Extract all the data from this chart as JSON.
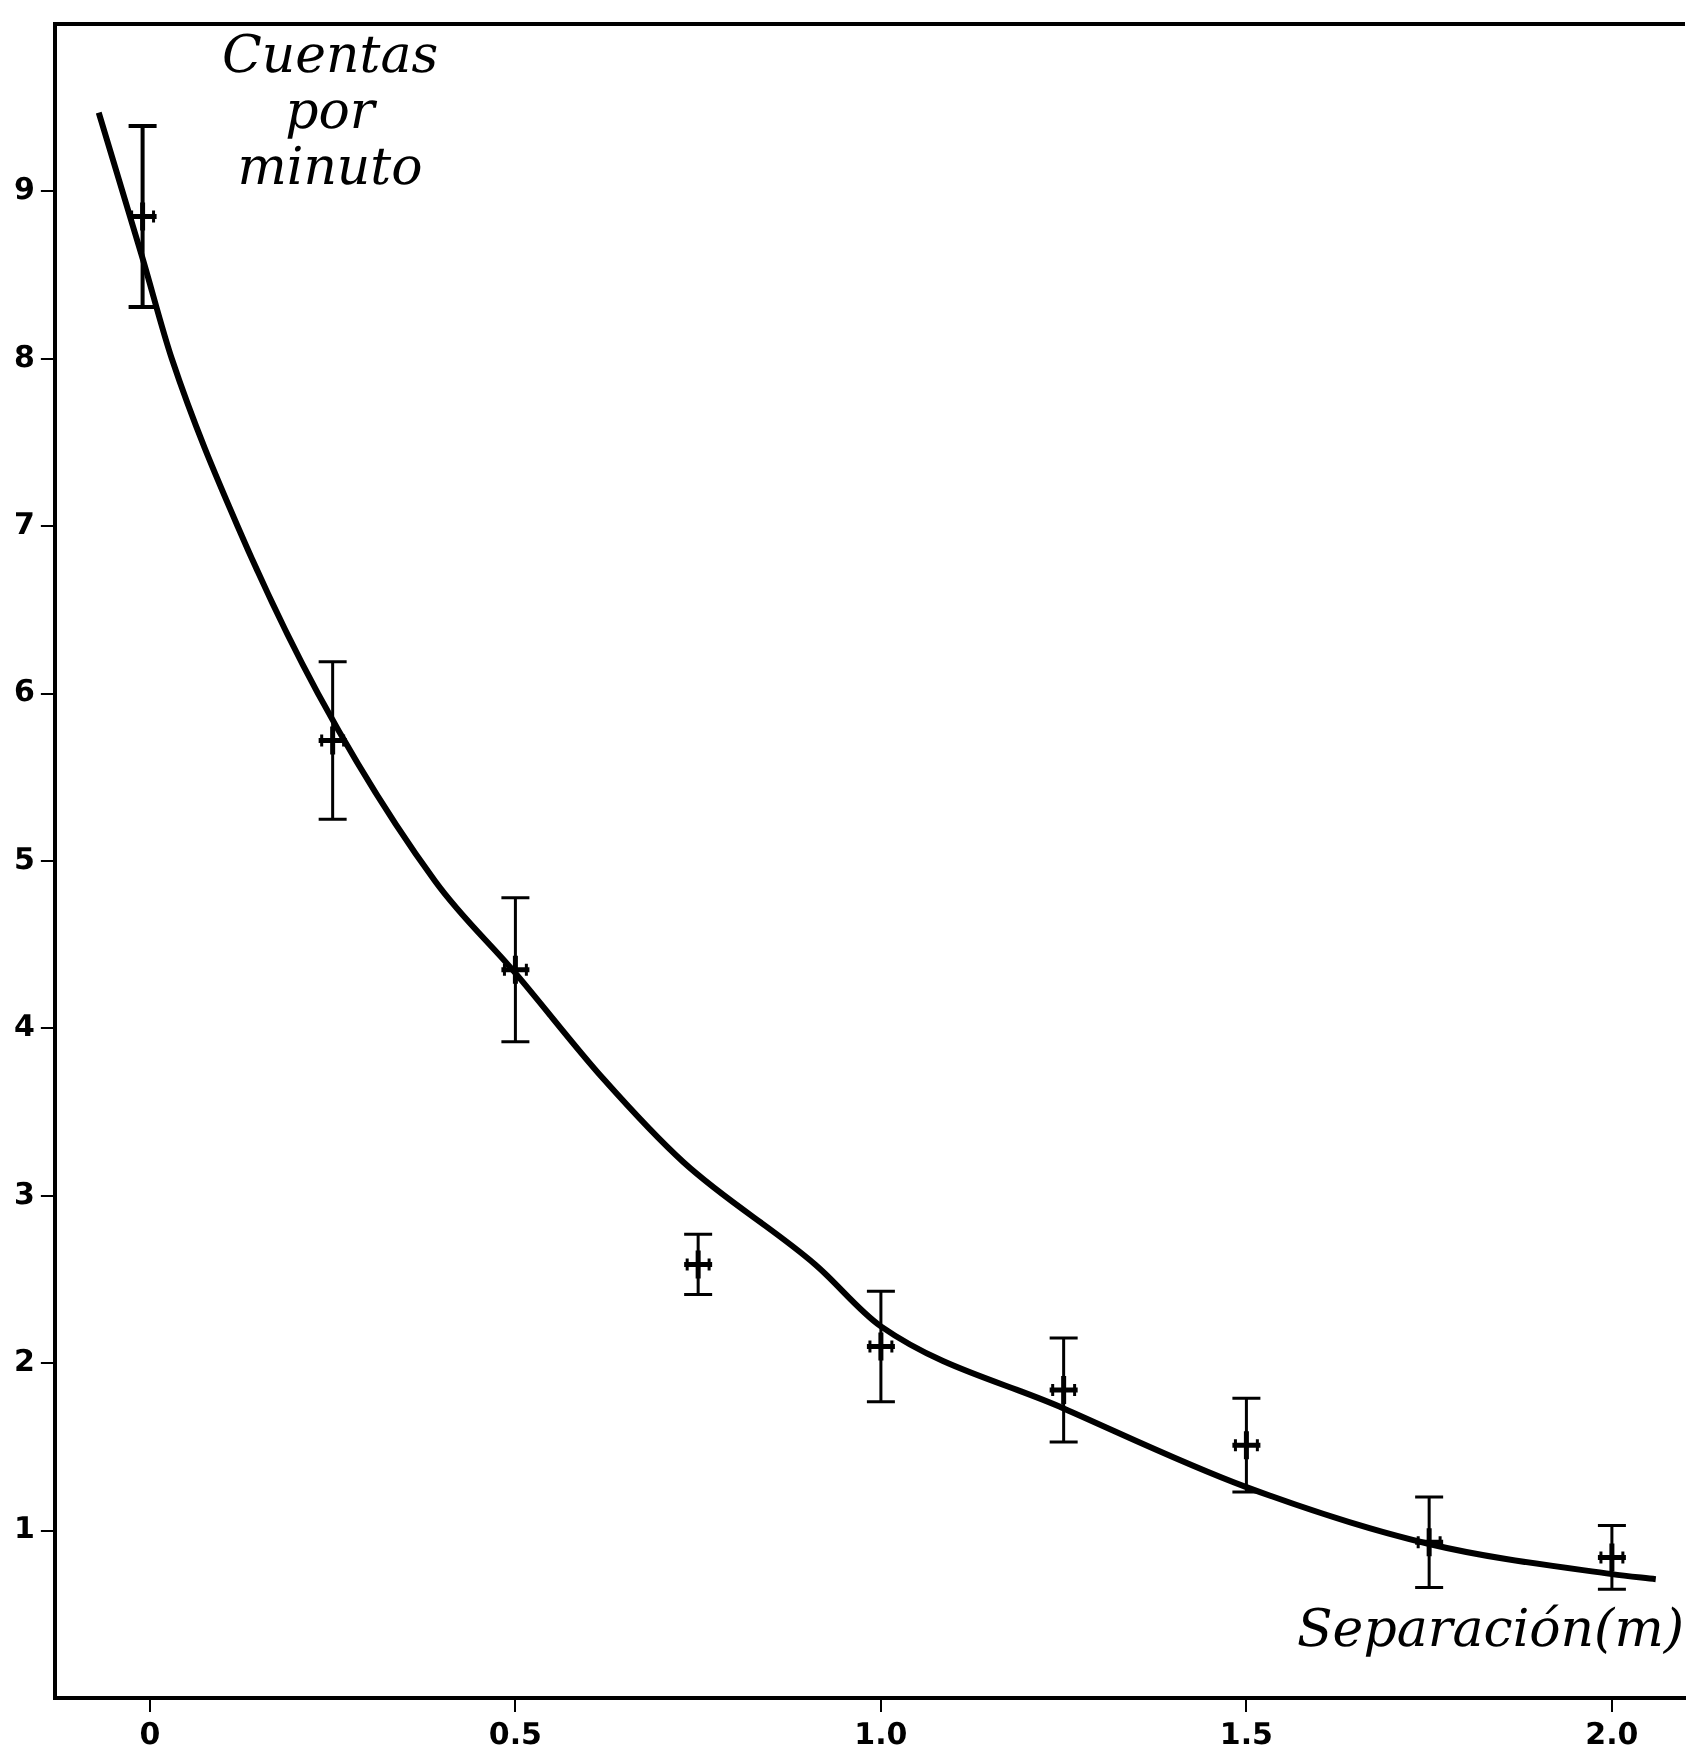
{
  "chart_data": {
    "type": "scatter",
    "xlabel": "Separación(m)",
    "ylabel": "Cuentas por minuto",
    "xlim": [
      -0.13,
      2.1
    ],
    "ylim": [
      0,
      10
    ],
    "xticks": [
      0,
      0.5,
      {
        "value": 1,
        "label": "1.0"
      },
      1.5,
      {
        "value": 2,
        "label": "2.0"
      }
    ],
    "yticks": [
      1,
      2,
      3,
      4,
      5,
      6,
      7,
      8,
      9
    ],
    "grid": false,
    "legend": false,
    "series": [
      {
        "marker": "cross",
        "color": "#000000",
        "x": [
          -0.01,
          0.25,
          0.5,
          0.75,
          1.0,
          1.25,
          1.5,
          1.75,
          2.0
        ],
        "values": [
          8.85,
          5.72,
          4.35,
          2.59,
          2.1,
          1.84,
          1.51,
          0.93,
          0.84
        ],
        "errors": [
          0.54,
          0.47,
          0.43,
          0.18,
          0.33,
          0.31,
          0.28,
          0.27,
          0.19
        ],
        "xerrors": [
          0.015,
          0.015,
          0.015,
          0.015,
          0.015,
          0.015,
          0.015,
          0.015,
          0.015
        ]
      },
      {
        "type": "line",
        "marker": "none",
        "color": "#000000",
        "x": [
          -0.07,
          -0.01,
          0.03,
          0.12,
          0.23,
          0.39,
          0.5,
          0.62,
          0.73,
          0.91,
          1.0,
          1.25,
          1.5,
          1.75,
          2.0,
          2.06
        ],
        "values": [
          9.47,
          8.6,
          8.0,
          7.0,
          6.0,
          4.88,
          4.33,
          3.7,
          3.2,
          2.59,
          2.22,
          1.73,
          1.26,
          0.92,
          0.74,
          0.71
        ]
      }
    ]
  }
}
